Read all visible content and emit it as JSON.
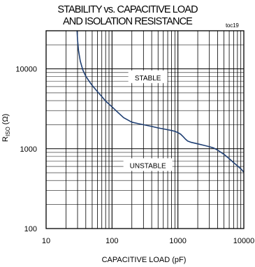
{
  "title_line1": "STABILITY vs. CAPACITIVE LOAD",
  "title_line2": "AND ISOLATION RESISTANCE",
  "tag": "toc19",
  "chart_data": {
    "type": "line",
    "title": "STABILITY vs. CAPACITIVE LOAD AND ISOLATION RESISTANCE",
    "xlabel": "CAPACITIVE LOAD (pF)",
    "ylabel_main": "R",
    "ylabel_sub": "ISO",
    "ylabel_unit": " (Ω)",
    "xscale": "log",
    "yscale": "log",
    "xlim": [
      10,
      10000
    ],
    "ylim": [
      100,
      30000
    ],
    "grid": true,
    "x_ticks": [
      10,
      100,
      1000,
      10000
    ],
    "x_tick_labels": [
      "10",
      "100",
      "1000",
      "10000"
    ],
    "y_ticks": [
      100,
      1000,
      10000
    ],
    "y_tick_labels": [
      "100",
      "1000",
      "10000"
    ],
    "annotations": [
      {
        "text": "STABLE",
        "x": 350,
        "y": 7800
      },
      {
        "text": "UNSTABLE",
        "x": 350,
        "y": 620
      }
    ],
    "series": [
      {
        "color": "#1f3f73",
        "x": [
          29.5,
          30,
          31,
          33,
          36,
          40,
          45,
          50,
          60,
          70,
          80,
          100,
          120,
          150,
          200,
          250,
          300,
          400,
          500,
          600,
          700,
          800,
          900,
          1000,
          1100,
          1200,
          1300,
          1400,
          1600,
          2000,
          2500,
          3000,
          3500,
          4000,
          5000,
          6000,
          7000,
          8000,
          9000,
          10000
        ],
        "y": [
          30000,
          23000,
          17000,
          12500,
          9700,
          8100,
          7000,
          6200,
          5200,
          4500,
          3950,
          3350,
          2900,
          2450,
          2150,
          2060,
          2000,
          1900,
          1820,
          1770,
          1730,
          1690,
          1650,
          1590,
          1520,
          1420,
          1320,
          1250,
          1200,
          1150,
          1100,
          1060,
          1020,
          960,
          850,
          750,
          670,
          610,
          560,
          510
        ]
      }
    ]
  }
}
